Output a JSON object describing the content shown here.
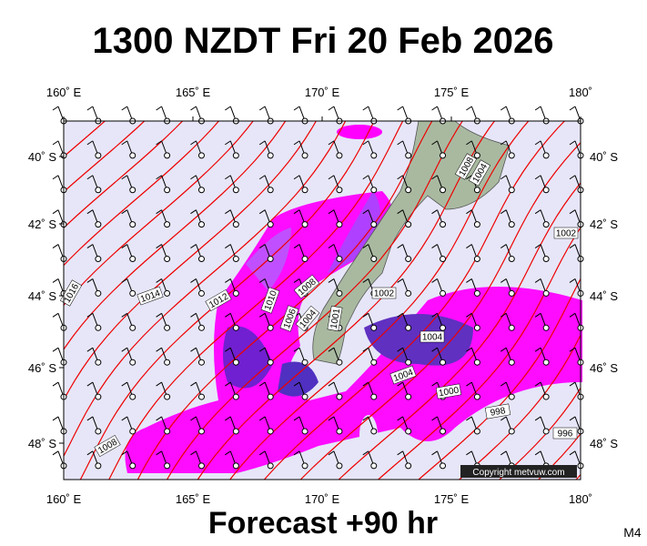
{
  "title": "1300 NZDT Fri 20 Feb 2026",
  "lon_labels": [
    "160˚ E",
    "165˚ E",
    "170˚ E",
    "175˚ E",
    "180˚"
  ],
  "lat_labels": [
    "40˚ S",
    "42˚ S",
    "44˚ S",
    "46˚ S",
    "48˚ S"
  ],
  "isobar_labels": [
    "1008",
    "1004",
    "1002",
    "1016",
    "1014",
    "1012",
    "1010",
    "1008",
    "1006",
    "1004",
    "1002",
    "1001",
    "1004",
    "1004",
    "1000",
    "998",
    "996",
    "1008"
  ],
  "copyright": "Copyright metvuw.com",
  "forecast": "Forecast +90 hr",
  "model": "M4"
}
